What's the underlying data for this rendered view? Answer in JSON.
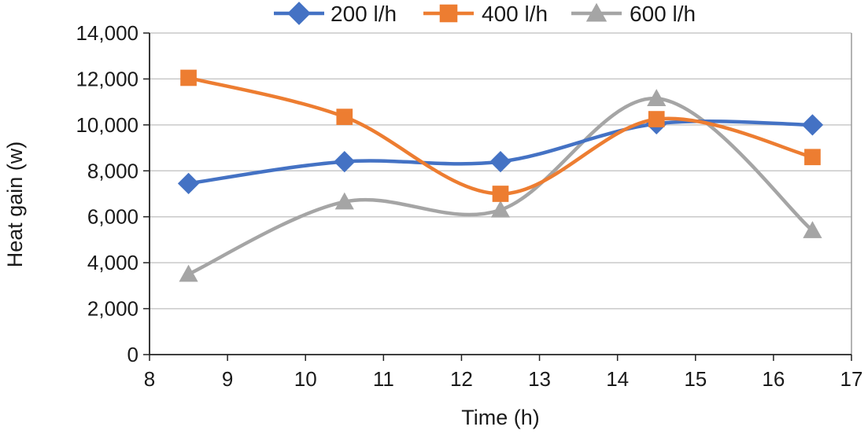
{
  "chart_data": {
    "type": "line",
    "smooth": true,
    "title": "",
    "xlabel": "Time (h)",
    "ylabel": "Heat gain (w)",
    "xlim": [
      8,
      17
    ],
    "ylim": [
      0,
      14000
    ],
    "x_ticks": [
      8,
      9,
      10,
      11,
      12,
      13,
      14,
      15,
      16,
      17
    ],
    "y_ticks": [
      0,
      2000,
      4000,
      6000,
      8000,
      10000,
      12000,
      14000
    ],
    "y_tick_labels": [
      "0",
      "2,000",
      "4,000",
      "6,000",
      "8,000",
      "10,000",
      "12,000",
      "14,000"
    ],
    "grid": "horizontal",
    "legend_position": "top",
    "x": [
      8.5,
      10.5,
      12.5,
      14.5,
      16.5
    ],
    "series": [
      {
        "name": "200 l/h",
        "color": "#4472C4",
        "marker": "diamond",
        "values": [
          7450,
          8400,
          8400,
          10050,
          10000
        ]
      },
      {
        "name": "400 l/h",
        "color": "#ED7D31",
        "marker": "square",
        "values": [
          12050,
          10350,
          7000,
          10250,
          8600
        ]
      },
      {
        "name": "600 l/h",
        "color": "#A5A5A5",
        "marker": "triangle",
        "values": [
          3500,
          6650,
          6300,
          11150,
          5400
        ]
      }
    ]
  }
}
